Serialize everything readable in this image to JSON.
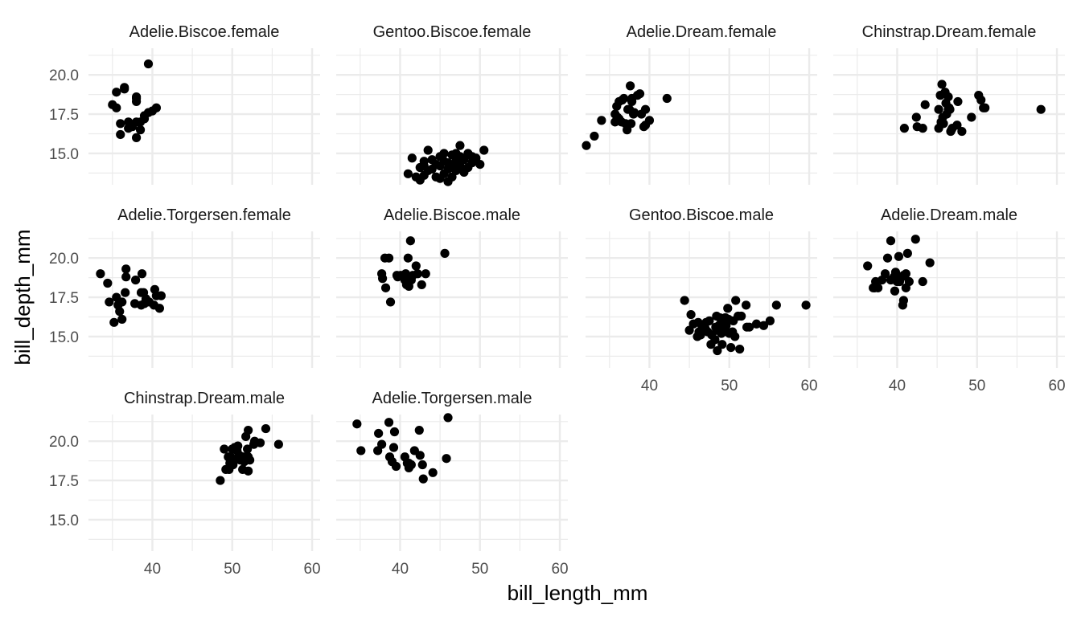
{
  "chart_data": {
    "type": "scatter",
    "facets": "small-multiples",
    "xlabel": "bill_length_mm",
    "ylabel": "bill_depth_mm",
    "xlim": [
      32,
      61
    ],
    "ylim": [
      13,
      21.7
    ],
    "x_ticks": [
      "40",
      "50",
      "60"
    ],
    "x_tick_values": [
      40,
      50,
      60
    ],
    "y_ticks": [
      "15.0",
      "17.5",
      "20.0"
    ],
    "y_tick_values": [
      15,
      17.5,
      20
    ],
    "grid": true,
    "point_color": "#000000",
    "grid_color": "#ebebeb",
    "panels": [
      {
        "title": "Adelie.Biscoe.female",
        "points": [
          [
            35.0,
            18.1
          ],
          [
            35.5,
            17.9
          ],
          [
            35.5,
            18.9
          ],
          [
            36.0,
            16.2
          ],
          [
            36.0,
            16.9
          ],
          [
            36.5,
            19.1
          ],
          [
            36.5,
            19.2
          ],
          [
            37.0,
            17.0
          ],
          [
            37.0,
            16.6
          ],
          [
            37.5,
            16.7
          ],
          [
            38.0,
            17.0
          ],
          [
            38.0,
            16.0
          ],
          [
            38.0,
            18.6
          ],
          [
            38.0,
            18.3
          ],
          [
            38.0,
            18.5
          ],
          [
            38.5,
            16.5
          ],
          [
            38.5,
            17.0
          ],
          [
            39.0,
            17.2
          ],
          [
            39.0,
            17.4
          ],
          [
            39.5,
            17.6
          ],
          [
            39.5,
            20.7
          ],
          [
            40.0,
            17.7
          ],
          [
            40.5,
            17.9
          ]
        ]
      },
      {
        "title": "Gentoo.Biscoe.female",
        "points": [
          [
            41.0,
            13.7
          ],
          [
            41.5,
            14.7
          ],
          [
            42.0,
            13.5
          ],
          [
            42.5,
            13.3
          ],
          [
            42.5,
            14.1
          ],
          [
            43.0,
            13.6
          ],
          [
            43.0,
            14.2
          ],
          [
            43.0,
            14.5
          ],
          [
            43.5,
            13.9
          ],
          [
            43.5,
            15.2
          ],
          [
            44.0,
            14.0
          ],
          [
            44.0,
            14.6
          ],
          [
            44.5,
            13.5
          ],
          [
            44.5,
            14.3
          ],
          [
            45.0,
            13.4
          ],
          [
            45.0,
            14.2
          ],
          [
            45.0,
            14.8
          ],
          [
            45.5,
            13.7
          ],
          [
            45.5,
            14.5
          ],
          [
            45.5,
            15.0
          ],
          [
            46.0,
            13.2
          ],
          [
            46.0,
            14.0
          ],
          [
            46.0,
            14.4
          ],
          [
            46.5,
            13.5
          ],
          [
            46.5,
            14.2
          ],
          [
            46.5,
            14.9
          ],
          [
            47.0,
            13.9
          ],
          [
            47.0,
            14.5
          ],
          [
            47.0,
            15.0
          ],
          [
            47.5,
            14.2
          ],
          [
            47.5,
            14.8
          ],
          [
            47.5,
            15.5
          ],
          [
            48.0,
            13.8
          ],
          [
            48.0,
            14.6
          ],
          [
            48.5,
            14.1
          ],
          [
            48.5,
            15.0
          ],
          [
            49.0,
            14.4
          ],
          [
            49.0,
            14.8
          ],
          [
            49.5,
            14.7
          ],
          [
            50.0,
            14.3
          ],
          [
            50.5,
            15.2
          ]
        ]
      },
      {
        "title": "Adelie.Dream.female",
        "points": [
          [
            32.1,
            15.5
          ],
          [
            33.1,
            16.1
          ],
          [
            34.0,
            17.1
          ],
          [
            35.7,
            17.0
          ],
          [
            35.7,
            17.5
          ],
          [
            35.9,
            18.0
          ],
          [
            36.0,
            17.3
          ],
          [
            36.2,
            17.2
          ],
          [
            36.2,
            18.3
          ],
          [
            36.5,
            17.0
          ],
          [
            36.6,
            18.4
          ],
          [
            36.8,
            18.5
          ],
          [
            37.0,
            16.9
          ],
          [
            37.2,
            16.5
          ],
          [
            37.3,
            17.8
          ],
          [
            37.5,
            17.8
          ],
          [
            37.6,
            19.3
          ],
          [
            37.7,
            16.9
          ],
          [
            37.8,
            18.3
          ],
          [
            37.8,
            18.5
          ],
          [
            38.0,
            17.5
          ],
          [
            38.1,
            17.6
          ],
          [
            38.5,
            18.7
          ],
          [
            38.8,
            18.8
          ],
          [
            39.0,
            17.5
          ],
          [
            39.3,
            16.7
          ],
          [
            39.5,
            17.8
          ],
          [
            39.5,
            16.8
          ],
          [
            40.0,
            17.1
          ],
          [
            42.2,
            18.5
          ]
        ]
      },
      {
        "title": "Chinstrap.Dream.female",
        "points": [
          [
            40.9,
            16.6
          ],
          [
            42.4,
            17.3
          ],
          [
            42.5,
            16.7
          ],
          [
            43.2,
            16.6
          ],
          [
            43.5,
            18.1
          ],
          [
            45.2,
            16.6
          ],
          [
            45.2,
            17.8
          ],
          [
            45.4,
            18.7
          ],
          [
            45.5,
            17.0
          ],
          [
            45.6,
            19.4
          ],
          [
            45.7,
            17.3
          ],
          [
            45.8,
            16.9
          ],
          [
            46.0,
            18.9
          ],
          [
            46.1,
            18.2
          ],
          [
            46.2,
            17.5
          ],
          [
            46.4,
            17.8
          ],
          [
            46.4,
            18.6
          ],
          [
            46.5,
            17.9
          ],
          [
            46.6,
            17.8
          ],
          [
            46.7,
            16.4
          ],
          [
            46.8,
            16.5
          ],
          [
            46.9,
            16.6
          ],
          [
            47.5,
            16.8
          ],
          [
            47.6,
            18.3
          ],
          [
            48.1,
            16.4
          ],
          [
            49.3,
            17.3
          ],
          [
            50.2,
            18.7
          ],
          [
            50.5,
            18.4
          ],
          [
            50.8,
            17.9
          ],
          [
            51.0,
            17.9
          ],
          [
            58.0,
            17.8
          ]
        ]
      },
      {
        "title": "Adelie.Torgersen.female",
        "points": [
          [
            33.5,
            19.0
          ],
          [
            34.4,
            18.4
          ],
          [
            34.6,
            17.2
          ],
          [
            35.2,
            15.9
          ],
          [
            35.5,
            17.5
          ],
          [
            35.7,
            17.0
          ],
          [
            35.9,
            16.6
          ],
          [
            36.2,
            17.2
          ],
          [
            36.2,
            16.1
          ],
          [
            36.6,
            17.8
          ],
          [
            36.7,
            19.3
          ],
          [
            36.7,
            18.8
          ],
          [
            37.8,
            17.1
          ],
          [
            37.9,
            18.6
          ],
          [
            38.6,
            17.0
          ],
          [
            38.6,
            17.8
          ],
          [
            38.7,
            19.0
          ],
          [
            38.9,
            17.8
          ],
          [
            39.0,
            17.1
          ],
          [
            39.2,
            17.4
          ],
          [
            39.6,
            17.2
          ],
          [
            40.2,
            17.0
          ],
          [
            40.3,
            18.0
          ],
          [
            40.5,
            17.6
          ],
          [
            40.9,
            16.8
          ],
          [
            41.1,
            17.6
          ]
        ]
      },
      {
        "title": "Adelie.Biscoe.male",
        "points": [
          [
            37.7,
            19.0
          ],
          [
            37.8,
            18.7
          ],
          [
            38.1,
            20.0
          ],
          [
            38.2,
            18.1
          ],
          [
            38.6,
            20.0
          ],
          [
            38.8,
            17.2
          ],
          [
            39.6,
            18.9
          ],
          [
            39.7,
            18.8
          ],
          [
            40.1,
            18.9
          ],
          [
            40.6,
            18.6
          ],
          [
            40.7,
            19.0
          ],
          [
            40.8,
            18.3
          ],
          [
            41.0,
            20.0
          ],
          [
            41.1,
            18.2
          ],
          [
            41.3,
            21.1
          ],
          [
            41.4,
            18.6
          ],
          [
            41.6,
            18.9
          ],
          [
            42.0,
            19.5
          ],
          [
            42.2,
            19.0
          ],
          [
            42.7,
            18.3
          ],
          [
            43.2,
            19.0
          ],
          [
            45.6,
            20.3
          ]
        ]
      },
      {
        "title": "Gentoo.Biscoe.male",
        "points": [
          [
            44.4,
            17.3
          ],
          [
            45.0,
            15.4
          ],
          [
            45.2,
            16.4
          ],
          [
            45.5,
            15.8
          ],
          [
            46.0,
            15.0
          ],
          [
            46.1,
            15.9
          ],
          [
            46.2,
            15.3
          ],
          [
            46.4,
            15.1
          ],
          [
            46.6,
            15.6
          ],
          [
            47.0,
            15.5
          ],
          [
            47.1,
            15.9
          ],
          [
            47.3,
            15.3
          ],
          [
            47.5,
            16.0
          ],
          [
            47.7,
            14.5
          ],
          [
            47.8,
            15.1
          ],
          [
            48.2,
            14.8
          ],
          [
            48.3,
            15.6
          ],
          [
            48.4,
            15.4
          ],
          [
            48.4,
            16.3
          ],
          [
            48.5,
            14.1
          ],
          [
            48.7,
            15.7
          ],
          [
            48.8,
            16.2
          ],
          [
            49.0,
            15.2
          ],
          [
            49.1,
            14.5
          ],
          [
            49.2,
            15.8
          ],
          [
            49.3,
            15.4
          ],
          [
            49.4,
            16.1
          ],
          [
            49.5,
            16.2
          ],
          [
            49.6,
            15.7
          ],
          [
            49.7,
            15.3
          ],
          [
            49.8,
            16.8
          ],
          [
            49.9,
            16.1
          ],
          [
            50.0,
            15.2
          ],
          [
            50.2,
            14.3
          ],
          [
            50.4,
            15.3
          ],
          [
            50.5,
            16.0
          ],
          [
            50.7,
            15.0
          ],
          [
            50.8,
            17.3
          ],
          [
            51.1,
            16.3
          ],
          [
            51.3,
            14.2
          ],
          [
            51.5,
            16.3
          ],
          [
            52.1,
            17.0
          ],
          [
            52.2,
            15.6
          ],
          [
            52.5,
            15.6
          ],
          [
            53.4,
            15.8
          ],
          [
            54.3,
            15.7
          ],
          [
            55.1,
            16.0
          ],
          [
            55.9,
            17.0
          ],
          [
            59.6,
            17.0
          ]
        ]
      },
      {
        "title": "Adelie.Dream.male",
        "points": [
          [
            36.3,
            19.5
          ],
          [
            37.0,
            18.1
          ],
          [
            37.2,
            18.1
          ],
          [
            37.3,
            18.5
          ],
          [
            37.6,
            18.1
          ],
          [
            38.1,
            18.6
          ],
          [
            38.5,
            19.0
          ],
          [
            38.8,
            20.0
          ],
          [
            39.2,
            18.6
          ],
          [
            39.2,
            21.1
          ],
          [
            39.6,
            18.8
          ],
          [
            39.7,
            17.9
          ],
          [
            39.8,
            19.1
          ],
          [
            40.0,
            18.5
          ],
          [
            40.2,
            20.1
          ],
          [
            40.3,
            18.5
          ],
          [
            40.6,
            18.8
          ],
          [
            40.7,
            17.0
          ],
          [
            40.8,
            18.9
          ],
          [
            40.8,
            17.3
          ],
          [
            40.9,
            18.9
          ],
          [
            41.1,
            19.0
          ],
          [
            41.1,
            18.1
          ],
          [
            41.3,
            20.3
          ],
          [
            41.5,
            18.5
          ],
          [
            42.3,
            21.2
          ],
          [
            43.2,
            18.5
          ],
          [
            44.1,
            19.7
          ]
        ]
      },
      {
        "title": "Chinstrap.Dream.male",
        "points": [
          [
            48.5,
            17.5
          ],
          [
            49.0,
            19.5
          ],
          [
            49.2,
            18.2
          ],
          [
            49.5,
            19.0
          ],
          [
            49.6,
            18.2
          ],
          [
            49.7,
            18.6
          ],
          [
            49.8,
            19.0
          ],
          [
            50.0,
            19.5
          ],
          [
            50.1,
            18.5
          ],
          [
            50.2,
            18.8
          ],
          [
            50.3,
            19.6
          ],
          [
            50.5,
            19.6
          ],
          [
            50.6,
            19.4
          ],
          [
            50.7,
            19.7
          ],
          [
            50.8,
            19.0
          ],
          [
            50.9,
            19.1
          ],
          [
            51.0,
            18.8
          ],
          [
            51.3,
            18.2
          ],
          [
            51.4,
            19.0
          ],
          [
            51.5,
            18.7
          ],
          [
            51.7,
            20.3
          ],
          [
            51.9,
            19.5
          ],
          [
            52.0,
            18.1
          ],
          [
            52.0,
            19.0
          ],
          [
            52.0,
            20.7
          ],
          [
            52.2,
            18.8
          ],
          [
            52.7,
            19.8
          ],
          [
            52.8,
            20.0
          ],
          [
            53.5,
            19.9
          ],
          [
            54.2,
            20.8
          ],
          [
            55.8,
            19.8
          ]
        ]
      },
      {
        "title": "Adelie.Torgersen.male",
        "points": [
          [
            34.6,
            21.1
          ],
          [
            35.1,
            19.4
          ],
          [
            37.2,
            19.4
          ],
          [
            37.3,
            20.5
          ],
          [
            37.7,
            19.8
          ],
          [
            38.6,
            21.2
          ],
          [
            38.7,
            19.0
          ],
          [
            39.0,
            18.7
          ],
          [
            39.2,
            19.6
          ],
          [
            39.3,
            20.6
          ],
          [
            39.5,
            18.4
          ],
          [
            40.6,
            19.0
          ],
          [
            40.9,
            18.6
          ],
          [
            41.1,
            18.6
          ],
          [
            41.1,
            18.3
          ],
          [
            41.4,
            18.5
          ],
          [
            41.8,
            19.4
          ],
          [
            42.4,
            20.7
          ],
          [
            42.5,
            19.1
          ],
          [
            42.8,
            18.5
          ],
          [
            42.9,
            17.6
          ],
          [
            44.1,
            18.0
          ],
          [
            45.8,
            18.9
          ],
          [
            46.0,
            21.5
          ]
        ]
      }
    ]
  }
}
